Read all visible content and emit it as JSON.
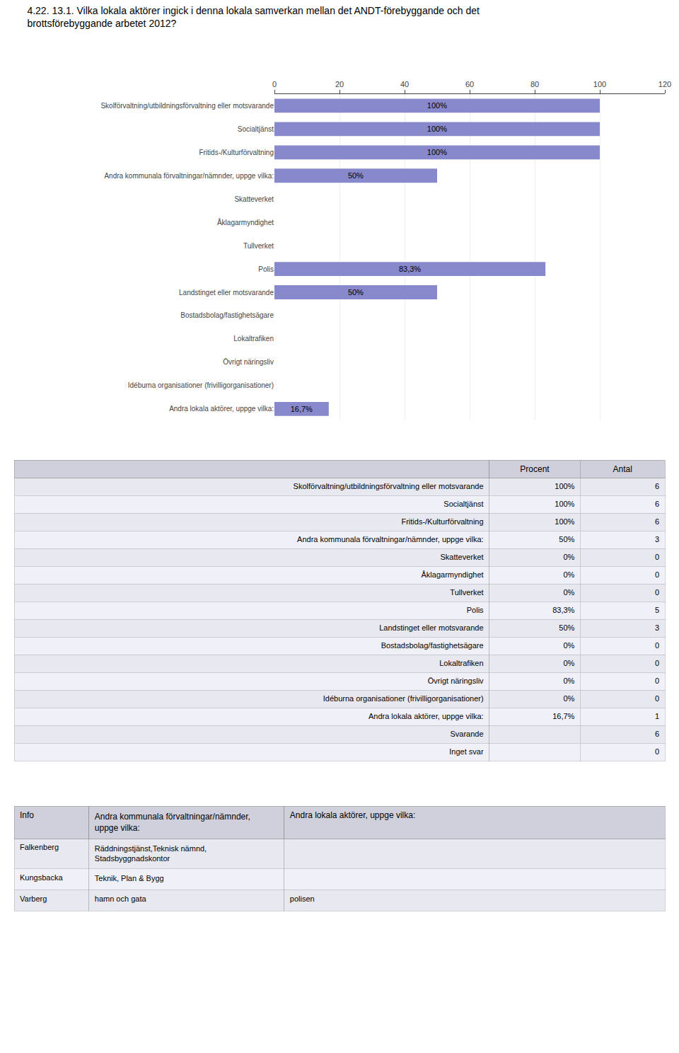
{
  "chart_data": {
    "type": "bar",
    "title": "4.22. 13.1. Vilka lokala aktörer ingick i denna lokala samverkan mellan det ANDT-förebyggande och det\nbrottsförebyggande arbetet 2012?",
    "orientation": "horizontal",
    "categories": [
      "Skolförvaltning/utbildningsförvaltning eller motsvarande",
      "Socialtjänst",
      "Fritids-/Kulturförvaltning",
      "Andra kommunala förvaltningar/nämnder, uppge vilka:",
      "Skatteverket",
      "Åklagarmyndighet",
      "Tullverket",
      "Polis",
      "Landstinget eller motsvarande",
      "Bostadsbolag/fastighetsägare",
      "Lokaltrafiken",
      "Övrigt näringsliv",
      "Idéburna organisationer (frivilligorganisationer)",
      "Andra lokala aktörer, uppge vilka:"
    ],
    "values": [
      100,
      100,
      100,
      50,
      0,
      0,
      0,
      83.3,
      50,
      0,
      0,
      0,
      0,
      16.7
    ],
    "value_labels": [
      "100%",
      "100%",
      "100%",
      "50%",
      null,
      null,
      null,
      "83,3%",
      "50%",
      null,
      null,
      null,
      null,
      "16,7%"
    ],
    "data_labels": true,
    "color": "#8888cc",
    "xlim": [
      0,
      120
    ],
    "xticks": [
      0,
      20,
      40,
      60,
      80,
      100,
      120
    ],
    "grid": true
  },
  "tables": [
    {
      "columns": [
        null,
        "Procent",
        "Antal"
      ],
      "rows": [
        [
          "Skolförvaltning/utbildningsförvaltning eller motsvarande",
          "100%",
          "6"
        ],
        [
          "Socialtjänst",
          "100%",
          "6"
        ],
        [
          "Fritids-/Kulturförvaltning",
          "100%",
          "6"
        ],
        [
          "Andra kommunala förvaltningar/nämnder, uppge vilka:",
          "50%",
          "3"
        ],
        [
          "Skatteverket",
          "0%",
          "0"
        ],
        [
          "Åklagarmyndighet",
          "0%",
          "0"
        ],
        [
          "Tullverket",
          "0%",
          "0"
        ],
        [
          "Polis",
          "83,3%",
          "5"
        ],
        [
          "Landstinget eller motsvarande",
          "50%",
          "3"
        ],
        [
          "Bostadsbolag/fastighetsägare",
          "0%",
          "0"
        ],
        [
          "Lokaltrafiken",
          "0%",
          "0"
        ],
        [
          "Övrigt näringsliv",
          "0%",
          "0"
        ],
        [
          "Idéburna organisationer (frivilligorganisationer)",
          "0%",
          "0"
        ],
        [
          "Andra lokala aktörer, uppge vilka:",
          "16,7%",
          "1"
        ],
        [
          "Svarande",
          null,
          "6"
        ],
        [
          "Inget svar",
          null,
          "0"
        ]
      ]
    },
    {
      "columns": [
        "Info",
        "Andra kommunala förvaltningar/nämnder, uppge vilka:",
        "Andra lokala aktörer, uppge vilka:"
      ],
      "rows": [
        [
          "Falkenberg",
          "Räddningstjänst,Teknisk nämnd,\nStadsbyggnadskontor",
          null
        ],
        [
          "Kungsbacka",
          "Teknik, Plan & Bygg",
          null
        ],
        [
          "Varberg",
          "hamn och gata",
          "polisen"
        ]
      ]
    }
  ]
}
